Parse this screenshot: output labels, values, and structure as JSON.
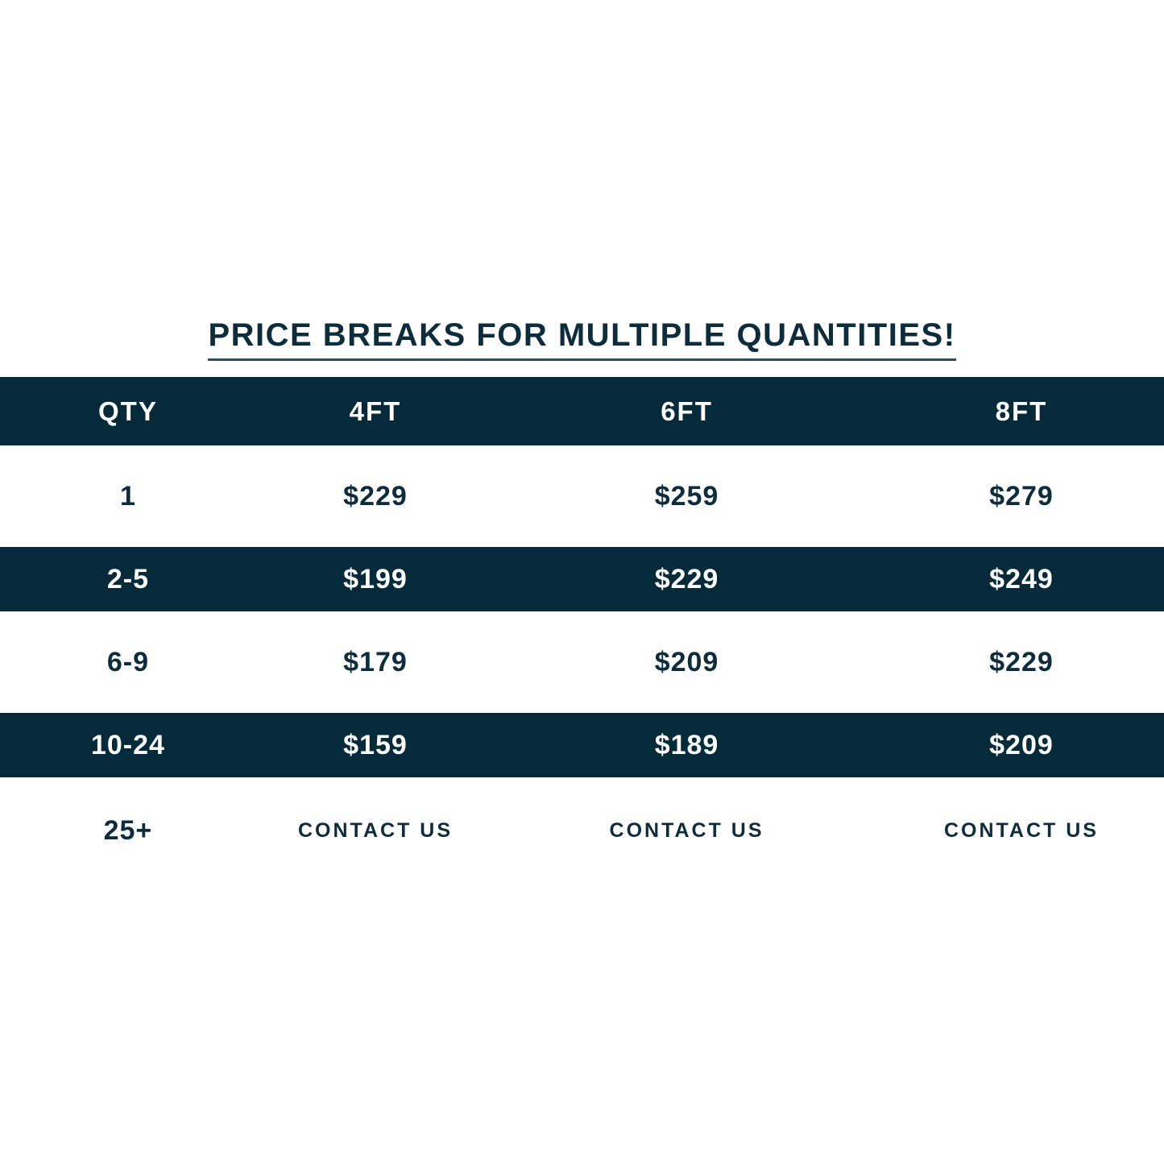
{
  "title": "PRICE BREAKS FOR MULTIPLE QUANTITIES!",
  "colors": {
    "dark_navy": "#052a3a",
    "text_navy": "#0e2d3c",
    "underline": "#2b4d60",
    "white": "#ffffff"
  },
  "chart_data": {
    "type": "table",
    "title": "PRICE BREAKS FOR MULTIPLE QUANTITIES!",
    "columns": [
      "QTY",
      "4FT",
      "6FT",
      "8FT"
    ],
    "rows": [
      [
        "1",
        "$229",
        "$259",
        "$279"
      ],
      [
        "2-5",
        "$199",
        "$229",
        "$249"
      ],
      [
        "6-9",
        "$179",
        "$209",
        "$229"
      ],
      [
        "10-24",
        "$159",
        "$189",
        "$209"
      ],
      [
        "25+",
        "CONTACT US",
        "CONTACT US",
        "CONTACT US"
      ]
    ],
    "layout": {
      "header_style": "dark-navy band, white text",
      "row_banding": [
        "light",
        "dark",
        "light",
        "dark",
        "light"
      ],
      "grid": false,
      "full_bleed_rows": true
    }
  }
}
